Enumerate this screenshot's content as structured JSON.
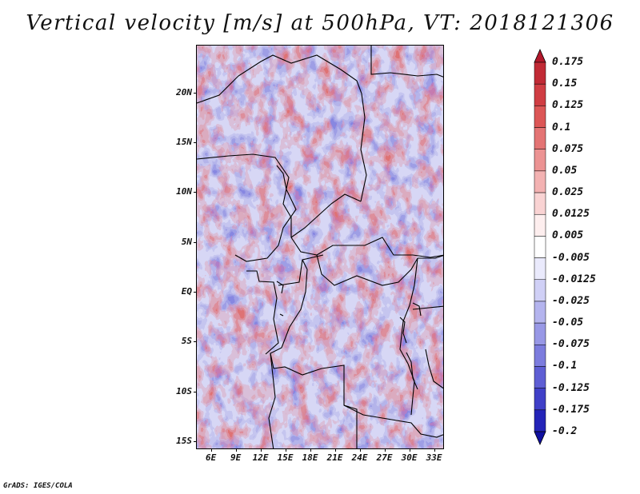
{
  "title": "Vertical velocity [m/s] at 500hPa, VT: 2018121306",
  "footer": "GrADS: IGES/COLA",
  "map": {
    "lat_labels": [
      "20N",
      "15N",
      "10N",
      "5N",
      "EQ",
      "5S",
      "10S",
      "15S"
    ],
    "lat_values": [
      20,
      15,
      10,
      5,
      0,
      -5,
      -10,
      -15
    ],
    "lon_labels": [
      "6E",
      "9E",
      "12E",
      "15E",
      "18E",
      "21E",
      "24E",
      "27E",
      "30E",
      "33E"
    ],
    "lon_values": [
      6,
      9,
      12,
      15,
      18,
      21,
      24,
      27,
      30,
      33
    ],
    "lat_range": [
      -15.8,
      24.8
    ],
    "lon_range": [
      4.2,
      34.2
    ]
  },
  "colorbar": {
    "labels": [
      "0.175",
      "0.15",
      "0.125",
      "0.1",
      "0.075",
      "0.05",
      "0.025",
      "0.0125",
      "0.005",
      "-0.005",
      "-0.0125",
      "-0.025",
      "-0.05",
      "-0.075",
      "-0.1",
      "-0.125",
      "-0.175",
      "-0.2"
    ],
    "colors": [
      "#b2182b",
      "#c12a35",
      "#d03d43",
      "#dc5656",
      "#e47474",
      "#ec9393",
      "#f3b2b2",
      "#f9d3d3",
      "#fdeeee",
      "#ffffff",
      "#eaeafc",
      "#d0d0f6",
      "#b4b4ee",
      "#9898e6",
      "#7c7cde",
      "#5e5ed4",
      "#4040c8",
      "#2424b8",
      "#1010a0"
    ]
  }
}
